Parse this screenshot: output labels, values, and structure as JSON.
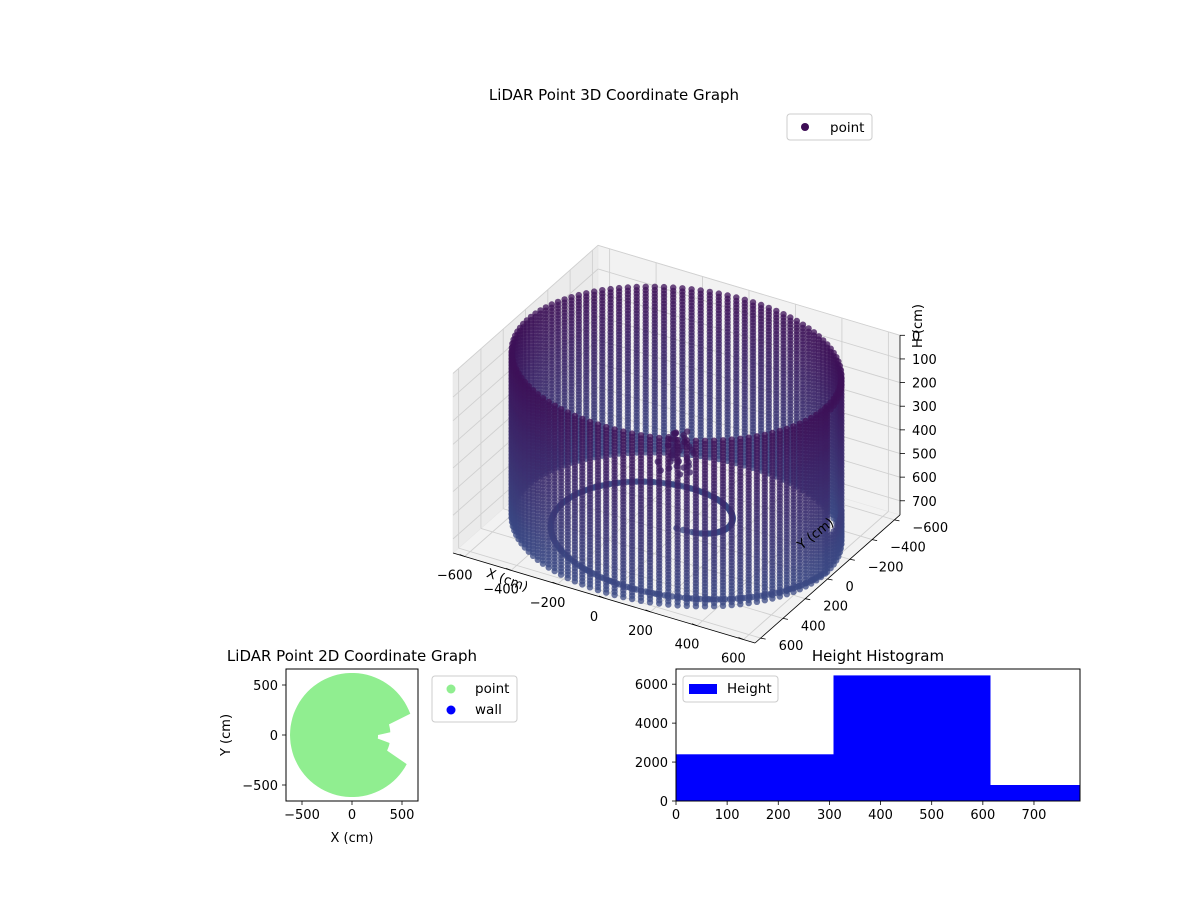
{
  "figure": {
    "chart_3d": {
      "title": "LiDAR Point 3D Coordinate Graph",
      "xlabel": "X (cm)",
      "ylabel": "Y (cm)",
      "zlabel": "H (cm)",
      "legend": "point",
      "colors": {
        "point": "#3b4a8a",
        "dark": "#3d0d55"
      }
    },
    "chart_2d": {
      "title": "LiDAR Point 2D Coordinate Graph",
      "xlabel": "X (cm)",
      "ylabel": "Y (cm)",
      "legend": [
        "point",
        "wall"
      ],
      "colors": {
        "point": "#90ee90",
        "wall": "#0000ff"
      }
    },
    "chart_hist": {
      "title": "Height Histogram",
      "legend": "Height",
      "color": "#0000ff"
    }
  },
  "chart_data": [
    {
      "type": "scatter",
      "title": "LiDAR Point 3D Coordinate Graph",
      "xlabel": "X (cm)",
      "ylabel": "Y (cm)",
      "zlabel": "H (cm)",
      "xticks": [
        "−600",
        "−400",
        "−200",
        "0",
        "200",
        "400",
        "600"
      ],
      "yticks": [
        "−600",
        "−400",
        "−200",
        "0",
        "200",
        "400",
        "600"
      ],
      "zticks": [
        "0",
        "100",
        "200",
        "300",
        "400",
        "500",
        "600",
        "700"
      ],
      "xlim": [
        -650,
        650
      ],
      "ylim": [
        -650,
        650
      ],
      "zlim": [
        0,
        760
      ],
      "z_inverted": true,
      "series": [
        {
          "name": "point",
          "description_shape": "cylindrical wall of radius ~650 cm, heights 0-760 cm"
        }
      ],
      "legend_position": "upper-right"
    },
    {
      "type": "scatter",
      "title": "LiDAR Point 2D Coordinate Graph",
      "xlabel": "X (cm)",
      "ylabel": "Y (cm)",
      "xticks": [
        "−500",
        "0",
        "500"
      ],
      "yticks": [
        "500",
        "0",
        "−500"
      ],
      "xlim": [
        -660,
        660
      ],
      "ylim": [
        -660,
        660
      ],
      "series": [
        {
          "name": "point"
        },
        {
          "name": "wall"
        }
      ],
      "legend_position": "outside-right"
    },
    {
      "type": "bar",
      "title": "Height Histogram",
      "bins": [
        [
          0,
          308
        ],
        [
          308,
          615
        ],
        [
          615,
          790
        ]
      ],
      "values": [
        2400,
        6450,
        820
      ],
      "xticks": [
        "0",
        "100",
        "200",
        "300",
        "400",
        "500",
        "600",
        "700"
      ],
      "yticks": [
        "0",
        "2000",
        "4000",
        "6000"
      ],
      "xlim": [
        0,
        790
      ],
      "ylim": [
        0,
        6780
      ],
      "series": [
        {
          "name": "Height"
        }
      ],
      "legend_position": "upper-left"
    }
  ]
}
